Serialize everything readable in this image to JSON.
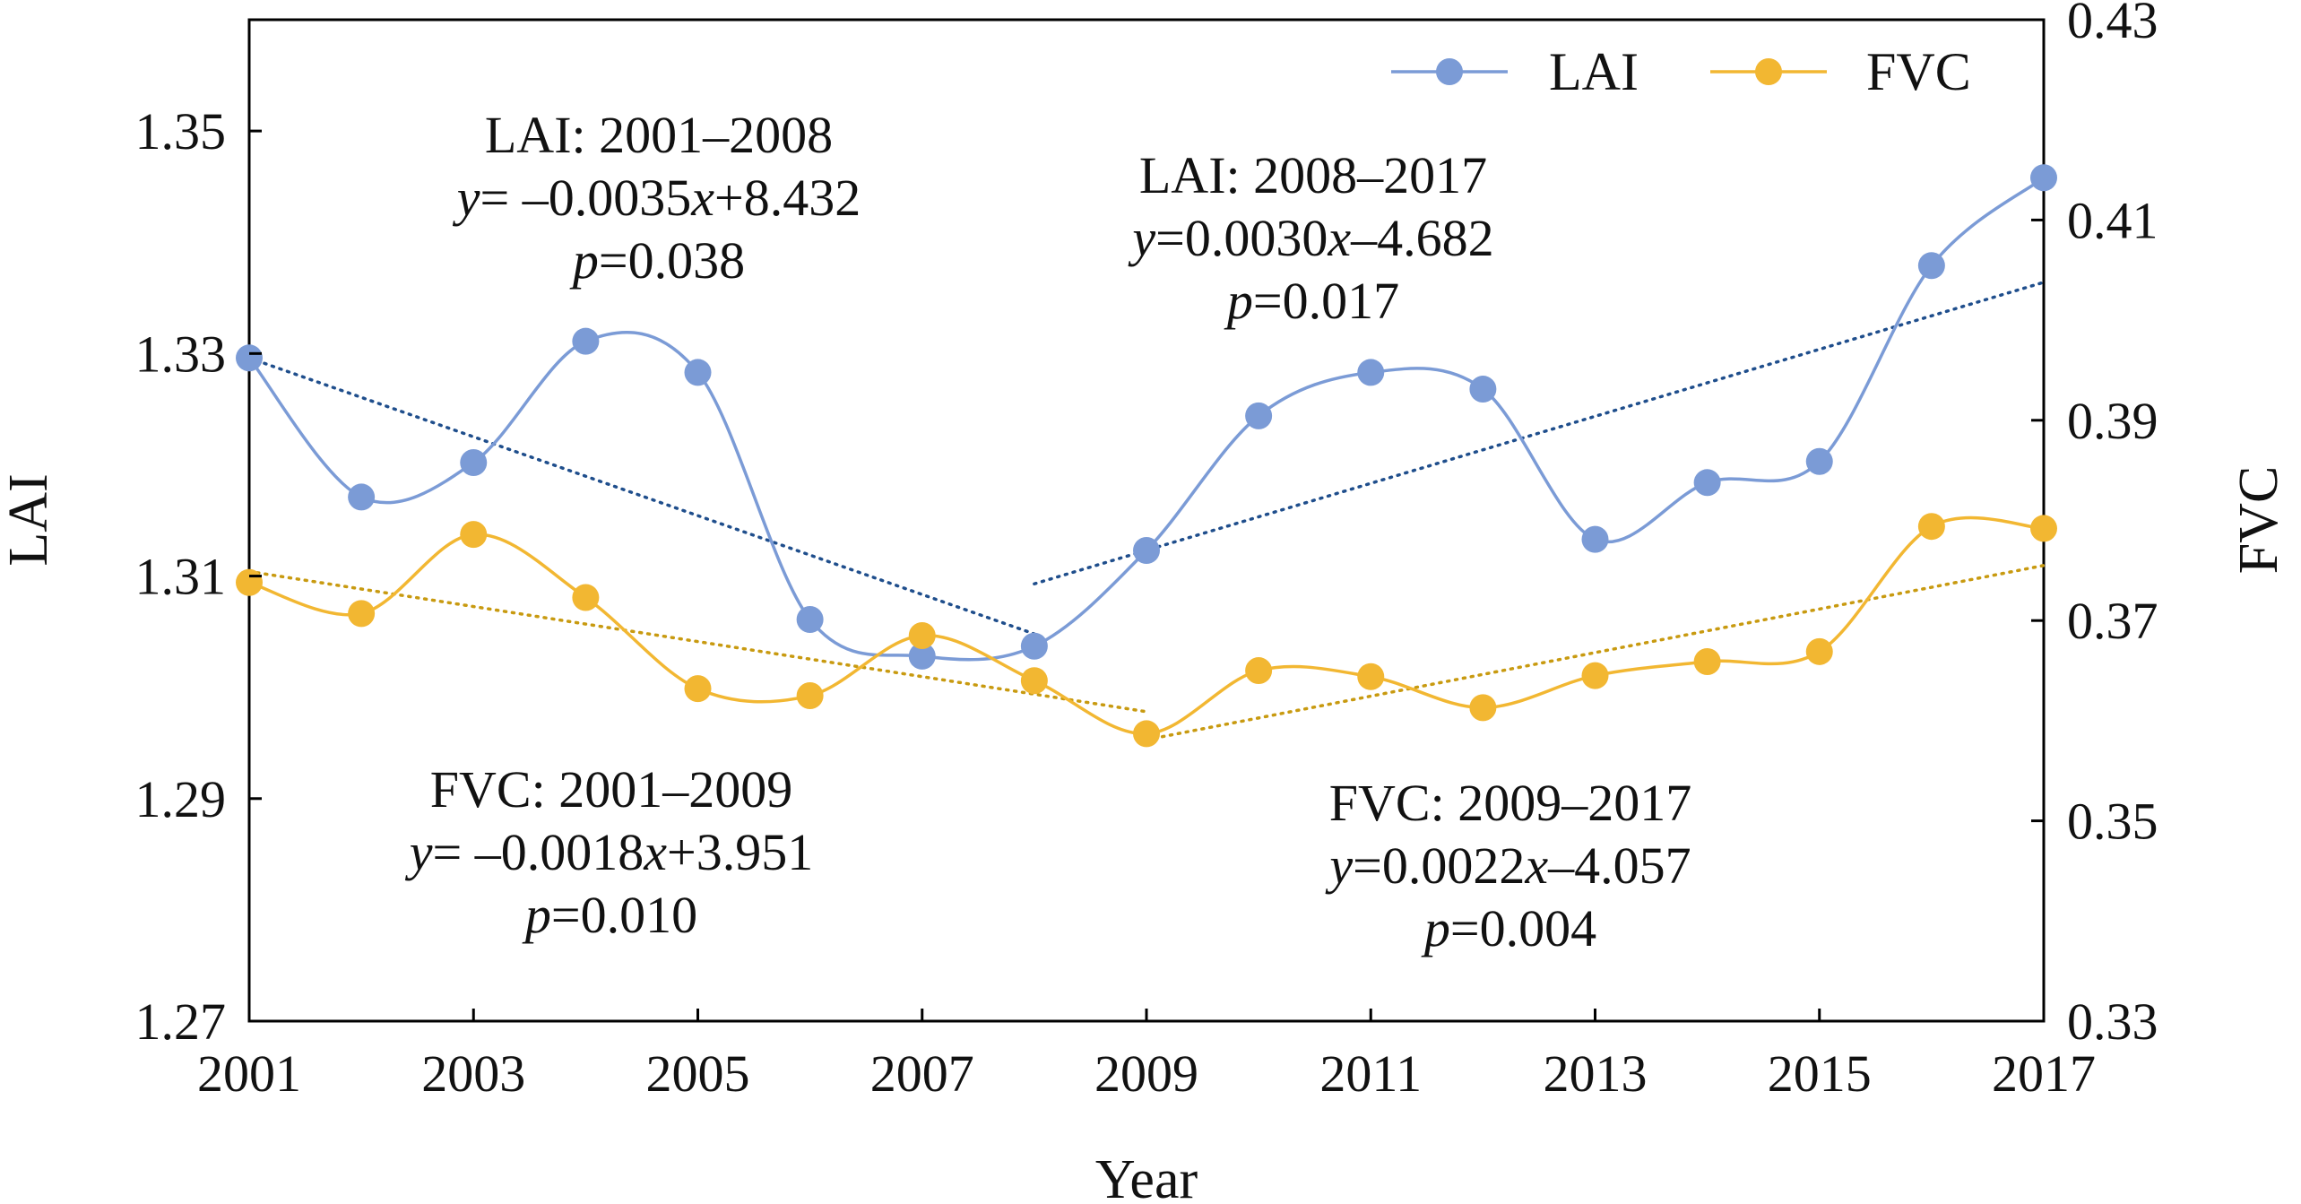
{
  "chart_data": {
    "type": "line",
    "xlabel": "Year",
    "ylabel_left": "LAI",
    "ylabel_right": "FVC",
    "x": [
      2001,
      2002,
      2003,
      2004,
      2005,
      2006,
      2007,
      2008,
      2009,
      2010,
      2011,
      2012,
      2013,
      2014,
      2015,
      2016,
      2017
    ],
    "x_ticks": [
      "2001",
      "2003",
      "2005",
      "2007",
      "2009",
      "2011",
      "2013",
      "2015",
      "2017"
    ],
    "xlim": [
      2001,
      2017
    ],
    "ylim_left": [
      1.27,
      1.36
    ],
    "y_ticks_left": [
      "1.27",
      "1.29",
      "1.31",
      "1.33",
      "1.35"
    ],
    "ylim_right": [
      0.33,
      0.43
    ],
    "y_ticks_right": [
      "0.33",
      "0.35",
      "0.37",
      "0.39",
      "0.41",
      "0.43"
    ],
    "grid": false,
    "legend_position": "top-right",
    "series": [
      {
        "name": "LAI",
        "axis": "left",
        "color": "#7b9bd6",
        "values": [
          1.3296,
          1.3171,
          1.3202,
          1.3311,
          1.3283,
          1.3061,
          1.3028,
          1.3037,
          1.3123,
          1.3244,
          1.3283,
          1.3268,
          1.3133,
          1.3184,
          1.3203,
          1.3379,
          1.3458
        ]
      },
      {
        "name": "FVC",
        "axis": "right",
        "color": "#f2b732",
        "values": [
          0.3738,
          0.3707,
          0.3786,
          0.3723,
          0.3632,
          0.3625,
          0.3685,
          0.364,
          0.3587,
          0.365,
          0.3644,
          0.3613,
          0.3645,
          0.3659,
          0.3669,
          0.3794,
          0.3792
        ]
      }
    ],
    "trendlines": [
      {
        "series": "LAI",
        "axis": "left",
        "color": "#1f4e8c",
        "x": [
          2001,
          2008
        ],
        "y": [
          1.3296,
          1.3048
        ]
      },
      {
        "series": "LAI",
        "axis": "left",
        "color": "#1f4e8c",
        "x": [
          2008,
          2017
        ],
        "y": [
          1.3093,
          1.3364
        ]
      },
      {
        "series": "FVC",
        "axis": "right",
        "color": "#c89a10",
        "x": [
          2001,
          2009
        ],
        "y": [
          0.3749,
          0.3609
        ]
      },
      {
        "series": "FVC",
        "axis": "right",
        "color": "#c89a10",
        "x": [
          2009,
          2017
        ],
        "y": [
          0.3581,
          0.3755
        ]
      }
    ],
    "annotations": [
      {
        "id": "lai-1",
        "lines": [
          "LAI: 2001–2008",
          "y= –0.0035x+8.432",
          "p=0.038"
        ]
      },
      {
        "id": "lai-2",
        "lines": [
          "LAI: 2008–2017",
          "y=0.0030x–4.682",
          "p=0.017"
        ]
      },
      {
        "id": "fvc-1",
        "lines": [
          "FVC: 2001–2009",
          "y= –0.0018x+3.951",
          "p=0.010"
        ]
      },
      {
        "id": "fvc-2",
        "lines": [
          "FVC: 2009–2017",
          "y=0.0022x–4.057",
          "p=0.004"
        ]
      }
    ]
  }
}
